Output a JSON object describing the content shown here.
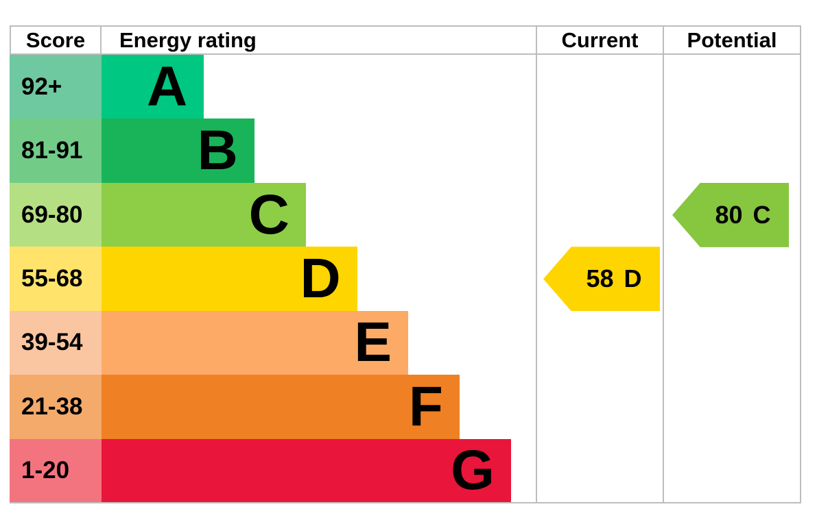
{
  "header": {
    "score": "Score",
    "energy_rating": "Energy rating",
    "current": "Current",
    "potential": "Potential"
  },
  "chart_data": {
    "type": "epc_energy_rating_band_chart",
    "title": "",
    "columns": [
      "Score",
      "Energy rating",
      "Current",
      "Potential"
    ],
    "bands": [
      {
        "letter": "A",
        "score_range": "92+",
        "bar_color": "#00c781",
        "score_bg": "#6ec8a0",
        "width_frac": 0.235
      },
      {
        "letter": "B",
        "score_range": "81-91",
        "bar_color": "#19b459",
        "score_bg": "#72cc88",
        "width_frac": 0.351
      },
      {
        "letter": "C",
        "score_range": "69-80",
        "bar_color": "#8dce46",
        "score_bg": "#b5df83",
        "width_frac": 0.469
      },
      {
        "letter": "D",
        "score_range": "55-68",
        "bar_color": "#ffd500",
        "score_bg": "#ffe36b",
        "width_frac": 0.587
      },
      {
        "letter": "E",
        "score_range": "39-54",
        "bar_color": "#fcaa65",
        "score_bg": "#fac5a1",
        "width_frac": 0.704
      },
      {
        "letter": "F",
        "score_range": "21-38",
        "bar_color": "#ef8023",
        "score_bg": "#f3aa6b",
        "width_frac": 0.822
      },
      {
        "letter": "G",
        "score_range": "1-20",
        "bar_color": "#e9153b",
        "score_bg": "#f3747f",
        "width_frac": 0.94
      }
    ],
    "current": {
      "value": "58",
      "band": "D",
      "color": "#ffd500",
      "band_index": 3
    },
    "potential": {
      "value": "80",
      "band": "C",
      "color": "#87c63f",
      "band_index": 2
    }
  }
}
